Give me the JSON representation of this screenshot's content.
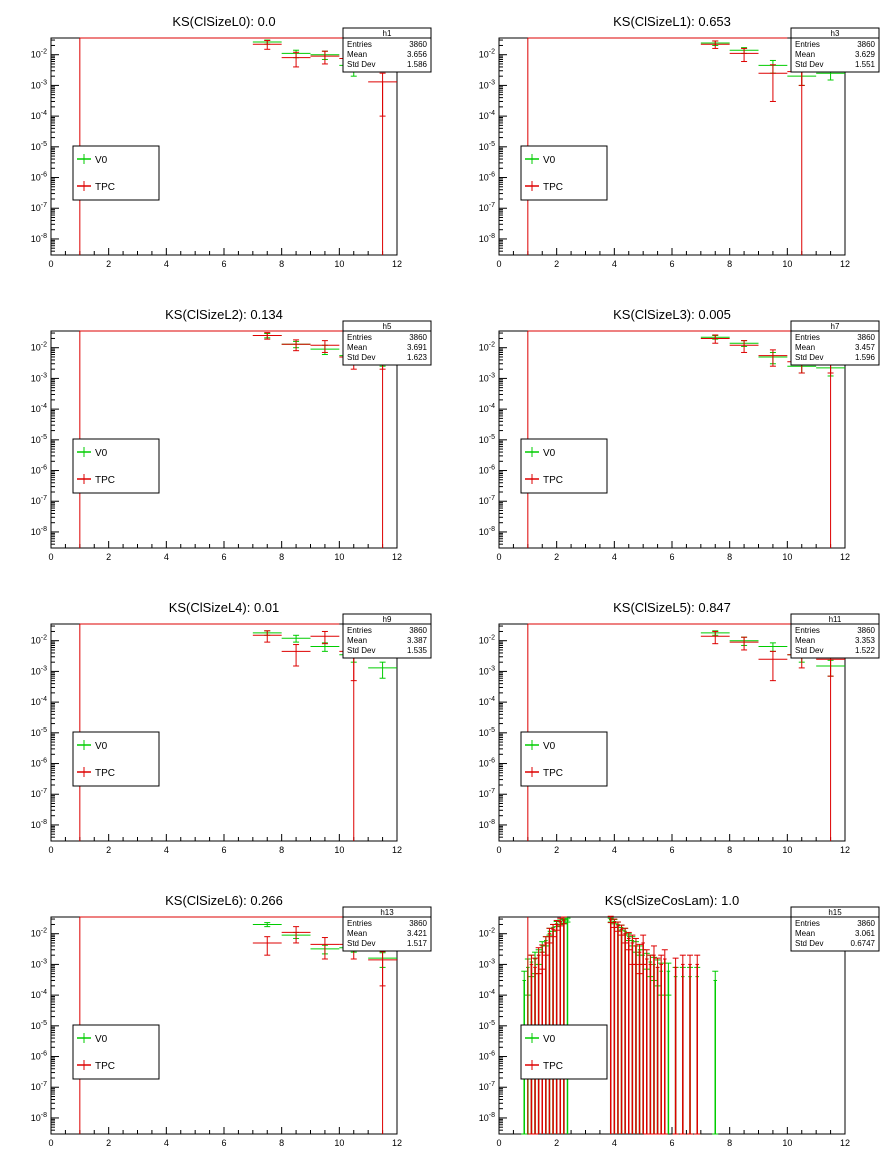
{
  "page": {
    "layout": "2 columns x 4 rows of ROOT histogram canvases"
  },
  "colors": {
    "v0": "#00cc00",
    "tpc": "#dd0000",
    "frame": "#000000",
    "background": "#ffffff"
  },
  "common": {
    "xticks": [
      "0",
      "2",
      "4",
      "6",
      "8",
      "10",
      "12"
    ],
    "yticks": [
      {
        "base": "10",
        "exp": "-2"
      },
      {
        "base": "10",
        "exp": "-3"
      },
      {
        "base": "10",
        "exp": "-4"
      },
      {
        "base": "10",
        "exp": "-5"
      },
      {
        "base": "10",
        "exp": "-6"
      },
      {
        "base": "10",
        "exp": "-7"
      },
      {
        "base": "10",
        "exp": "-8"
      }
    ],
    "legend": [
      "V0",
      "TPC"
    ],
    "stats_labels": [
      "Entries",
      "Mean",
      "Std Dev"
    ]
  },
  "chart_data": [
    {
      "type": "histogram-errorbars",
      "title": "KS(ClSizeL0): 0.0",
      "stats": {
        "name": "h1",
        "entries": "3860",
        "mean": "3.656",
        "std": "1.586"
      },
      "xlim": [
        0,
        12
      ],
      "ylim": [
        3e-09,
        0.035
      ],
      "yscale": "log",
      "legend_position": "left-middle",
      "series": [
        {
          "name": "V0",
          "bins": [
            [
              7.5,
              0.026,
              0.004
            ],
            [
              8.5,
              0.011,
              0.003
            ],
            [
              9.5,
              0.01,
              0.003
            ],
            [
              10.5,
              0.0045,
              0.0025
            ]
          ]
        },
        {
          "name": "TPC",
          "bins": [
            [
              1.0,
              0.035,
              0
            ],
            [
              7.5,
              0.022,
              0.007
            ],
            [
              8.5,
              0.008,
              0.004
            ],
            [
              9.5,
              0.009,
              0.004
            ],
            [
              10.5,
              0.0075,
              0.004
            ],
            [
              11.5,
              0.0013,
              0.0012
            ]
          ]
        }
      ]
    },
    {
      "type": "histogram-errorbars",
      "title": "KS(ClSizeL1): 0.653",
      "stats": {
        "name": "h3",
        "entries": "3860",
        "mean": "3.629",
        "std": "1.551"
      },
      "xlim": [
        0,
        12
      ],
      "ylim": [
        3e-09,
        0.035
      ],
      "yscale": "log",
      "legend_position": "left-middle",
      "series": [
        {
          "name": "V0",
          "bins": [
            [
              7.5,
              0.024,
              0.004
            ],
            [
              8.5,
              0.014,
              0.003
            ],
            [
              9.5,
              0.0045,
              0.002
            ],
            [
              10.5,
              0.002,
              0.001
            ],
            [
              11.5,
              0.0025,
              0.001
            ]
          ]
        },
        {
          "name": "TPC",
          "bins": [
            [
              1.0,
              0.035,
              0
            ],
            [
              7.5,
              0.022,
              0.006
            ],
            [
              8.5,
              0.011,
              0.005
            ],
            [
              9.5,
              0.0025,
              0.0022
            ],
            [
              10.5,
              0.0028,
              0.0018
            ]
          ]
        }
      ]
    },
    {
      "type": "histogram-errorbars",
      "title": "KS(ClSizeL2): 0.134",
      "stats": {
        "name": "h5",
        "entries": "3860",
        "mean": "3.691",
        "std": "1.623"
      },
      "xlim": [
        0,
        12
      ],
      "ylim": [
        3e-09,
        0.035
      ],
      "yscale": "log",
      "legend_position": "left-middle",
      "series": [
        {
          "name": "V0",
          "bins": [
            [
              7.5,
              0.025,
              0.004
            ],
            [
              8.5,
              0.013,
              0.003
            ],
            [
              9.5,
              0.009,
              0.003
            ],
            [
              10.5,
              0.0055,
              0.002
            ],
            [
              11.5,
              0.0045,
              0.002
            ]
          ]
        },
        {
          "name": "TPC",
          "bins": [
            [
              1.0,
              0.035,
              0
            ],
            [
              7.5,
              0.025,
              0.006
            ],
            [
              8.5,
              0.013,
              0.005
            ],
            [
              9.5,
              0.012,
              0.005
            ],
            [
              10.5,
              0.005,
              0.003
            ],
            [
              11.5,
              0.005,
              0.003
            ]
          ]
        }
      ]
    },
    {
      "type": "histogram-errorbars",
      "title": "KS(ClSizeL3): 0.005",
      "stats": {
        "name": "h7",
        "entries": "3860",
        "mean": "3.457",
        "std": "1.596"
      },
      "xlim": [
        0,
        12
      ],
      "ylim": [
        3e-09,
        0.035
      ],
      "yscale": "log",
      "legend_position": "left-middle",
      "series": [
        {
          "name": "V0",
          "bins": [
            [
              7.5,
              0.022,
              0.003
            ],
            [
              8.5,
              0.014,
              0.003
            ],
            [
              9.5,
              0.005,
              0.002
            ],
            [
              10.5,
              0.0025,
              0.001
            ],
            [
              11.5,
              0.0022,
              0.001
            ]
          ]
        },
        {
          "name": "TPC",
          "bins": [
            [
              1.0,
              0.035,
              0
            ],
            [
              7.5,
              0.02,
              0.006
            ],
            [
              8.5,
              0.012,
              0.005
            ],
            [
              9.5,
              0.0055,
              0.003
            ],
            [
              10.5,
              0.0035,
              0.002
            ],
            [
              11.5,
              0.0035,
              0.002
            ]
          ]
        }
      ]
    },
    {
      "type": "histogram-errorbars",
      "title": "KS(ClSizeL4): 0.01",
      "stats": {
        "name": "h9",
        "entries": "3860",
        "mean": "3.387",
        "std": "1.535"
      },
      "xlim": [
        0,
        12
      ],
      "ylim": [
        3e-09,
        0.035
      ],
      "yscale": "log",
      "legend_position": "left-middle",
      "series": [
        {
          "name": "V0",
          "bins": [
            [
              7.5,
              0.018,
              0.003
            ],
            [
              8.5,
              0.012,
              0.003
            ],
            [
              9.5,
              0.0065,
              0.002
            ],
            [
              10.5,
              0.0035,
              0.0015
            ],
            [
              11.5,
              0.0013,
              0.0007
            ]
          ]
        },
        {
          "name": "TPC",
          "bins": [
            [
              1.0,
              0.035,
              0
            ],
            [
              7.5,
              0.015,
              0.006
            ],
            [
              8.5,
              0.0045,
              0.003
            ],
            [
              9.5,
              0.014,
              0.006
            ],
            [
              10.5,
              0.0045,
              0.004
            ]
          ]
        }
      ]
    },
    {
      "type": "histogram-errorbars",
      "title": "KS(ClSizeL5): 0.847",
      "stats": {
        "name": "h11",
        "entries": "3860",
        "mean": "3.353",
        "std": "1.522"
      },
      "xlim": [
        0,
        12
      ],
      "ylim": [
        3e-09,
        0.035
      ],
      "yscale": "log",
      "legend_position": "left-middle",
      "series": [
        {
          "name": "V0",
          "bins": [
            [
              7.5,
              0.018,
              0.003
            ],
            [
              8.5,
              0.01,
              0.003
            ],
            [
              9.5,
              0.0065,
              0.002
            ],
            [
              10.5,
              0.0035,
              0.0015
            ],
            [
              11.5,
              0.0015,
              0.0008
            ]
          ]
        },
        {
          "name": "TPC",
          "bins": [
            [
              1.0,
              0.035,
              0
            ],
            [
              7.5,
              0.014,
              0.006
            ],
            [
              8.5,
              0.009,
              0.004
            ],
            [
              9.5,
              0.0025,
              0.002
            ],
            [
              10.5,
              0.0035,
              0.0022
            ],
            [
              11.5,
              0.0025,
              0.0018
            ]
          ]
        }
      ]
    },
    {
      "type": "histogram-errorbars",
      "title": "KS(ClSizeL6): 0.266",
      "stats": {
        "name": "h13",
        "entries": "3860",
        "mean": "3.421",
        "std": "1.517"
      },
      "xlim": [
        0,
        12
      ],
      "ylim": [
        3e-09,
        0.035
      ],
      "yscale": "log",
      "legend_position": "left-middle",
      "series": [
        {
          "name": "V0",
          "bins": [
            [
              7.5,
              0.02,
              0.003
            ],
            [
              8.5,
              0.009,
              0.002
            ],
            [
              9.5,
              0.0032,
              0.001
            ],
            [
              10.5,
              0.0035,
              0.001
            ],
            [
              11.5,
              0.0016,
              0.0008
            ]
          ]
        },
        {
          "name": "TPC",
          "bins": [
            [
              1.0,
              0.035,
              0
            ],
            [
              7.5,
              0.005,
              0.003
            ],
            [
              8.5,
              0.011,
              0.006
            ],
            [
              9.5,
              0.0045,
              0.003
            ],
            [
              10.5,
              0.0045,
              0.003
            ],
            [
              11.5,
              0.0014,
              0.0012
            ]
          ]
        }
      ]
    },
    {
      "type": "histogram-errorbars",
      "title": "KS(clSizeCosLam): 1.0",
      "stats": {
        "name": "h15",
        "entries": "3860",
        "mean": "3.061",
        "std": "0.6747"
      },
      "xlim": [
        0,
        12
      ],
      "ylim": [
        3e-09,
        0.035
      ],
      "yscale": "log",
      "legend_position": "left-middle",
      "series": [
        {
          "name": "V0",
          "bins": [
            [
              0.875,
              0.0003,
              0.0003
            ],
            [
              1.0,
              0.0008,
              0.0007
            ],
            [
              1.125,
              0.0012,
              0.0008
            ],
            [
              1.25,
              0.0015,
              0.001
            ],
            [
              1.375,
              0.002,
              0.001
            ],
            [
              1.5,
              0.004,
              0.0015
            ],
            [
              1.625,
              0.006,
              0.002
            ],
            [
              1.75,
              0.012,
              0.003
            ],
            [
              1.875,
              0.016,
              0.004
            ],
            [
              2.0,
              0.021,
              0.004
            ],
            [
              2.125,
              0.024,
              0.004
            ],
            [
              2.25,
              0.026,
              0.004
            ],
            [
              2.375,
              0.028,
              0.004
            ],
            [
              3.875,
              0.028,
              0.004
            ],
            [
              4.0,
              0.025,
              0.004
            ],
            [
              4.125,
              0.02,
              0.004
            ],
            [
              4.25,
              0.016,
              0.003
            ],
            [
              4.375,
              0.012,
              0.003
            ],
            [
              4.5,
              0.008,
              0.002
            ],
            [
              4.625,
              0.006,
              0.002
            ],
            [
              4.75,
              0.004,
              0.0015
            ],
            [
              4.875,
              0.003,
              0.001
            ],
            [
              5.0,
              0.002,
              0.001
            ],
            [
              5.125,
              0.0015,
              0.0008
            ],
            [
              5.25,
              0.0012,
              0.0008
            ],
            [
              5.375,
              0.001,
              0.0007
            ],
            [
              5.5,
              0.0008,
              0.0006
            ],
            [
              5.625,
              0.0006,
              0.0005
            ],
            [
              5.875,
              0.0006,
              0.0005
            ],
            [
              6.125,
              0.0004,
              0.0004
            ],
            [
              6.375,
              0.0004,
              0.0004
            ],
            [
              6.625,
              0.0004,
              0.0004
            ],
            [
              6.875,
              0.0004,
              0.0004
            ],
            [
              7.5,
              0.0003,
              0.0003
            ]
          ]
        },
        {
          "name": "TPC",
          "bins": [
            [
              1.0,
              0.035,
              0
            ],
            [
              1.125,
              0.001,
              0.001
            ],
            [
              1.25,
              0.0008,
              0.0008
            ],
            [
              1.375,
              0.002,
              0.0015
            ],
            [
              1.5,
              0.0025,
              0.0018
            ],
            [
              1.625,
              0.005,
              0.003
            ],
            [
              1.75,
              0.01,
              0.005
            ],
            [
              1.875,
              0.014,
              0.006
            ],
            [
              2.0,
              0.02,
              0.007
            ],
            [
              2.125,
              0.025,
              0.007
            ],
            [
              2.25,
              0.028,
              0.007
            ],
            [
              3.875,
              0.03,
              0.007
            ],
            [
              4.0,
              0.023,
              0.007
            ],
            [
              4.125,
              0.018,
              0.006
            ],
            [
              4.25,
              0.014,
              0.005
            ],
            [
              4.375,
              0.01,
              0.005
            ],
            [
              4.5,
              0.007,
              0.004
            ],
            [
              4.625,
              0.005,
              0.004
            ],
            [
              4.75,
              0.004,
              0.003
            ],
            [
              4.875,
              0.0025,
              0.002
            ],
            [
              5.0,
              0.005,
              0.004
            ],
            [
              5.125,
              0.0015,
              0.0015
            ],
            [
              5.25,
              0.001,
              0.001
            ],
            [
              5.375,
              0.002,
              0.002
            ],
            [
              5.5,
              0.0008,
              0.0008
            ],
            [
              5.625,
              0.001,
              0.001
            ],
            [
              5.75,
              0.0015,
              0.0015
            ],
            [
              6.125,
              0.0008,
              0.0008
            ],
            [
              6.375,
              0.001,
              0.001
            ],
            [
              6.625,
              0.001,
              0.001
            ],
            [
              6.875,
              0.001,
              0.001
            ]
          ]
        }
      ]
    }
  ]
}
